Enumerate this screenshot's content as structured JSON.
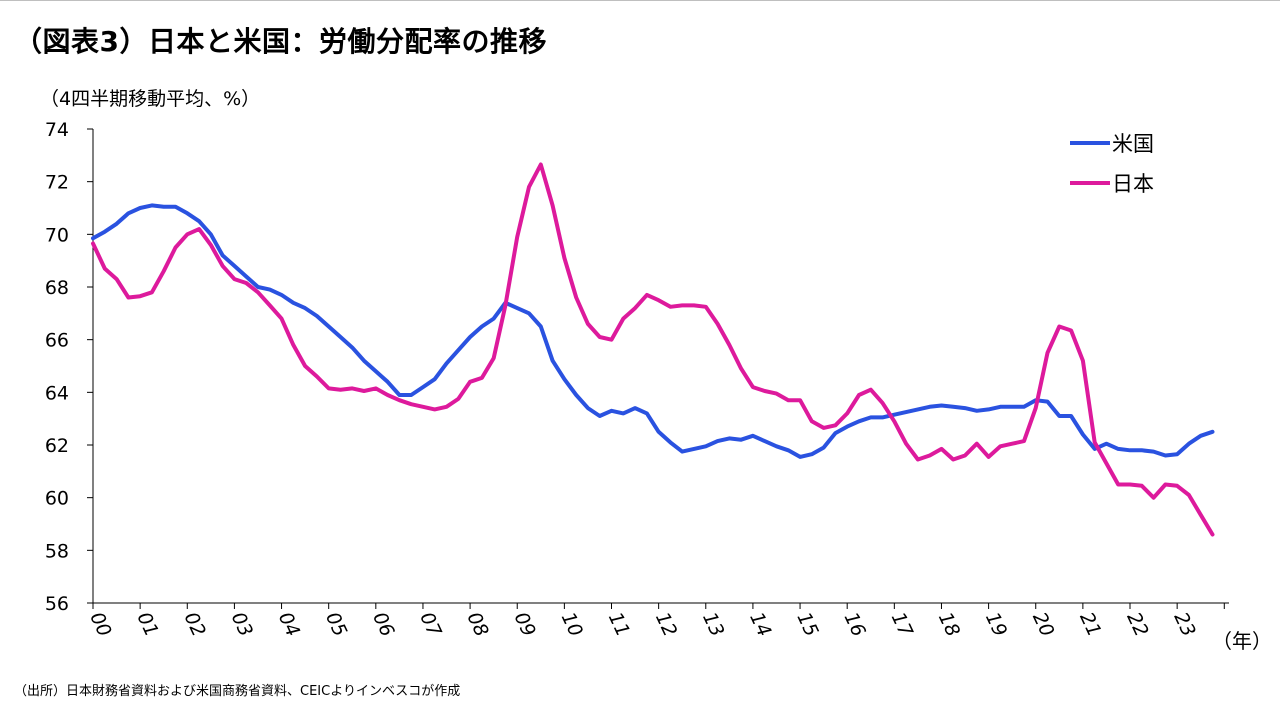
{
  "title": "（図表3）日本と米国：労働分配率の推移",
  "unit_label": "（4四半期移動平均、%）",
  "source_note": "（出所）日本財務省資料および米国商務省資料、CEICよりインベスコが作成",
  "chart_data": {
    "type": "line",
    "x_unit_label": "（年）",
    "x_tick_labels": [
      "00",
      "01",
      "02",
      "03",
      "04",
      "05",
      "06",
      "07",
      "08",
      "09",
      "10",
      "11",
      "12",
      "13",
      "14",
      "15",
      "16",
      "17",
      "18",
      "19",
      "20",
      "21",
      "22",
      "23"
    ],
    "ylim": [
      56,
      74
    ],
    "y_ticks": [
      56,
      58,
      60,
      62,
      64,
      66,
      68,
      70,
      72,
      74
    ],
    "xlim": [
      2000,
      2024.1
    ],
    "grid": false,
    "legend_position": "top-right",
    "series": [
      {
        "name": "米国",
        "color": "#2a52e0",
        "points": [
          [
            2000.0,
            69.85
          ],
          [
            2000.25,
            70.1
          ],
          [
            2000.5,
            70.4
          ],
          [
            2000.75,
            70.8
          ],
          [
            2001.0,
            71.0
          ],
          [
            2001.25,
            71.1
          ],
          [
            2001.5,
            71.05
          ],
          [
            2001.75,
            71.05
          ],
          [
            2002.0,
            70.8
          ],
          [
            2002.25,
            70.5
          ],
          [
            2002.5,
            70.0
          ],
          [
            2002.75,
            69.2
          ],
          [
            2003.0,
            68.8
          ],
          [
            2003.25,
            68.4
          ],
          [
            2003.5,
            68.0
          ],
          [
            2003.75,
            67.9
          ],
          [
            2004.0,
            67.7
          ],
          [
            2004.25,
            67.4
          ],
          [
            2004.5,
            67.2
          ],
          [
            2004.75,
            66.9
          ],
          [
            2005.0,
            66.5
          ],
          [
            2005.25,
            66.1
          ],
          [
            2005.5,
            65.7
          ],
          [
            2005.75,
            65.2
          ],
          [
            2006.0,
            64.8
          ],
          [
            2006.25,
            64.4
          ],
          [
            2006.5,
            63.9
          ],
          [
            2006.75,
            63.9
          ],
          [
            2007.0,
            64.2
          ],
          [
            2007.25,
            64.5
          ],
          [
            2007.5,
            65.1
          ],
          [
            2007.75,
            65.6
          ],
          [
            2008.0,
            66.1
          ],
          [
            2008.25,
            66.5
          ],
          [
            2008.5,
            66.8
          ],
          [
            2008.75,
            67.4
          ],
          [
            2009.0,
            67.2
          ],
          [
            2009.25,
            67.0
          ],
          [
            2009.5,
            66.5
          ],
          [
            2009.75,
            65.2
          ],
          [
            2010.0,
            64.5
          ],
          [
            2010.25,
            63.9
          ],
          [
            2010.5,
            63.4
          ],
          [
            2010.75,
            63.1
          ],
          [
            2011.0,
            63.3
          ],
          [
            2011.25,
            63.2
          ],
          [
            2011.5,
            63.4
          ],
          [
            2011.75,
            63.2
          ],
          [
            2012.0,
            62.5
          ],
          [
            2012.25,
            62.1
          ],
          [
            2012.5,
            61.75
          ],
          [
            2012.75,
            61.85
          ],
          [
            2013.0,
            61.95
          ],
          [
            2013.25,
            62.15
          ],
          [
            2013.5,
            62.25
          ],
          [
            2013.75,
            62.2
          ],
          [
            2014.0,
            62.35
          ],
          [
            2014.25,
            62.15
          ],
          [
            2014.5,
            61.95
          ],
          [
            2014.75,
            61.8
          ],
          [
            2015.0,
            61.55
          ],
          [
            2015.25,
            61.65
          ],
          [
            2015.5,
            61.9
          ],
          [
            2015.75,
            62.45
          ],
          [
            2016.0,
            62.7
          ],
          [
            2016.25,
            62.9
          ],
          [
            2016.5,
            63.05
          ],
          [
            2016.75,
            63.05
          ],
          [
            2017.0,
            63.15
          ],
          [
            2017.25,
            63.25
          ],
          [
            2017.5,
            63.35
          ],
          [
            2017.75,
            63.45
          ],
          [
            2018.0,
            63.5
          ],
          [
            2018.25,
            63.45
          ],
          [
            2018.5,
            63.4
          ],
          [
            2018.75,
            63.3
          ],
          [
            2019.0,
            63.35
          ],
          [
            2019.25,
            63.45
          ],
          [
            2019.5,
            63.45
          ],
          [
            2019.75,
            63.45
          ],
          [
            2020.0,
            63.7
          ],
          [
            2020.25,
            63.65
          ],
          [
            2020.5,
            63.1
          ],
          [
            2020.75,
            63.1
          ],
          [
            2021.0,
            62.4
          ],
          [
            2021.25,
            61.85
          ],
          [
            2021.5,
            62.05
          ],
          [
            2021.75,
            61.85
          ],
          [
            2022.0,
            61.8
          ],
          [
            2022.25,
            61.8
          ],
          [
            2022.5,
            61.75
          ],
          [
            2022.75,
            61.6
          ],
          [
            2023.0,
            61.65
          ],
          [
            2023.25,
            62.05
          ],
          [
            2023.5,
            62.35
          ],
          [
            2023.75,
            62.5
          ]
        ]
      },
      {
        "name": "日本",
        "color": "#dd1a9c",
        "points": [
          [
            2000.0,
            69.65
          ],
          [
            2000.25,
            68.7
          ],
          [
            2000.5,
            68.3
          ],
          [
            2000.75,
            67.6
          ],
          [
            2001.0,
            67.65
          ],
          [
            2001.25,
            67.8
          ],
          [
            2001.5,
            68.6
          ],
          [
            2001.75,
            69.5
          ],
          [
            2002.0,
            70.0
          ],
          [
            2002.25,
            70.2
          ],
          [
            2002.5,
            69.6
          ],
          [
            2002.75,
            68.8
          ],
          [
            2003.0,
            68.3
          ],
          [
            2003.25,
            68.15
          ],
          [
            2003.5,
            67.8
          ],
          [
            2003.75,
            67.3
          ],
          [
            2004.0,
            66.8
          ],
          [
            2004.25,
            65.8
          ],
          [
            2004.5,
            65.0
          ],
          [
            2004.75,
            64.6
          ],
          [
            2005.0,
            64.15
          ],
          [
            2005.25,
            64.1
          ],
          [
            2005.5,
            64.15
          ],
          [
            2005.75,
            64.05
          ],
          [
            2006.0,
            64.15
          ],
          [
            2006.25,
            63.9
          ],
          [
            2006.5,
            63.7
          ],
          [
            2006.75,
            63.55
          ],
          [
            2007.0,
            63.45
          ],
          [
            2007.25,
            63.35
          ],
          [
            2007.5,
            63.45
          ],
          [
            2007.75,
            63.75
          ],
          [
            2008.0,
            64.4
          ],
          [
            2008.25,
            64.55
          ],
          [
            2008.5,
            65.3
          ],
          [
            2008.75,
            67.3
          ],
          [
            2009.0,
            69.9
          ],
          [
            2009.25,
            71.8
          ],
          [
            2009.5,
            72.65
          ],
          [
            2009.75,
            71.1
          ],
          [
            2010.0,
            69.1
          ],
          [
            2010.25,
            67.6
          ],
          [
            2010.5,
            66.6
          ],
          [
            2010.75,
            66.1
          ],
          [
            2011.0,
            66.0
          ],
          [
            2011.25,
            66.8
          ],
          [
            2011.5,
            67.2
          ],
          [
            2011.75,
            67.7
          ],
          [
            2012.0,
            67.5
          ],
          [
            2012.25,
            67.25
          ],
          [
            2012.5,
            67.3
          ],
          [
            2012.75,
            67.3
          ],
          [
            2013.0,
            67.25
          ],
          [
            2013.25,
            66.6
          ],
          [
            2013.5,
            65.8
          ],
          [
            2013.75,
            64.9
          ],
          [
            2014.0,
            64.2
          ],
          [
            2014.25,
            64.05
          ],
          [
            2014.5,
            63.95
          ],
          [
            2014.75,
            63.7
          ],
          [
            2015.0,
            63.7
          ],
          [
            2015.25,
            62.9
          ],
          [
            2015.5,
            62.65
          ],
          [
            2015.75,
            62.75
          ],
          [
            2016.0,
            63.2
          ],
          [
            2016.25,
            63.9
          ],
          [
            2016.5,
            64.1
          ],
          [
            2016.75,
            63.6
          ],
          [
            2017.0,
            62.9
          ],
          [
            2017.25,
            62.05
          ],
          [
            2017.5,
            61.45
          ],
          [
            2017.75,
            61.6
          ],
          [
            2018.0,
            61.85
          ],
          [
            2018.25,
            61.45
          ],
          [
            2018.5,
            61.6
          ],
          [
            2018.75,
            62.05
          ],
          [
            2019.0,
            61.55
          ],
          [
            2019.25,
            61.95
          ],
          [
            2019.5,
            62.05
          ],
          [
            2019.75,
            62.15
          ],
          [
            2020.0,
            63.4
          ],
          [
            2020.25,
            65.5
          ],
          [
            2020.5,
            66.5
          ],
          [
            2020.75,
            66.35
          ],
          [
            2021.0,
            65.2
          ],
          [
            2021.25,
            62.1
          ],
          [
            2021.5,
            61.3
          ],
          [
            2021.75,
            60.5
          ],
          [
            2022.0,
            60.5
          ],
          [
            2022.25,
            60.45
          ],
          [
            2022.5,
            60.0
          ],
          [
            2022.75,
            60.5
          ],
          [
            2023.0,
            60.45
          ],
          [
            2023.25,
            60.1
          ],
          [
            2023.5,
            59.35
          ],
          [
            2023.75,
            58.6
          ]
        ]
      }
    ]
  }
}
